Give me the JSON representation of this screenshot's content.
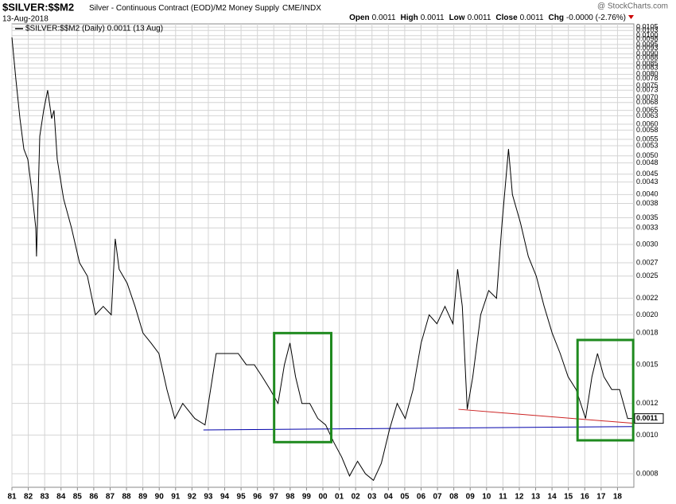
{
  "chart_data": {
    "type": "line",
    "title": "$SILVER:$$M2",
    "subtitle": "Silver - Continuous Contract (EOD)/M2 Money Supply",
    "exchange": "CME/INDX",
    "date": "13-Aug-2018",
    "quote": [
      {
        "label": "Open",
        "value": "0.0011"
      },
      {
        "label": "High",
        "value": "0.0011"
      },
      {
        "label": "Low",
        "value": "0.0011"
      },
      {
        "label": "Close",
        "value": "0.0011"
      },
      {
        "label": "Chg",
        "value": "-0.0000 (-2.76%)"
      }
    ],
    "credit": "@ StockCharts.com",
    "log_scale": true,
    "grid": true,
    "xlim": [
      1981,
      2019
    ],
    "ylim": [
      0.00074,
      0.0107
    ],
    "xticks": [
      {
        "value": 1981,
        "label": "81"
      },
      {
        "value": 1982,
        "label": "82"
      },
      {
        "value": 1983,
        "label": "83"
      },
      {
        "value": 1984,
        "label": "84"
      },
      {
        "value": 1985,
        "label": "85"
      },
      {
        "value": 1986,
        "label": "86"
      },
      {
        "value": 1987,
        "label": "87"
      },
      {
        "value": 1988,
        "label": "88"
      },
      {
        "value": 1989,
        "label": "89"
      },
      {
        "value": 1990,
        "label": "90"
      },
      {
        "value": 1991,
        "label": "91"
      },
      {
        "value": 1992,
        "label": "92"
      },
      {
        "value": 1993,
        "label": "93"
      },
      {
        "value": 1994,
        "label": "94"
      },
      {
        "value": 1995,
        "label": "95"
      },
      {
        "value": 1996,
        "label": "96"
      },
      {
        "value": 1997,
        "label": "97"
      },
      {
        "value": 1998,
        "label": "98"
      },
      {
        "value": 1999,
        "label": "99"
      },
      {
        "value": 2000,
        "label": "00"
      },
      {
        "value": 2001,
        "label": "01"
      },
      {
        "value": 2002,
        "label": "02"
      },
      {
        "value": 2003,
        "label": "03"
      },
      {
        "value": 2004,
        "label": "04"
      },
      {
        "value": 2005,
        "label": "05"
      },
      {
        "value": 2006,
        "label": "06"
      },
      {
        "value": 2007,
        "label": "07"
      },
      {
        "value": 2008,
        "label": "08"
      },
      {
        "value": 2009,
        "label": "09"
      },
      {
        "value": 2010,
        "label": "10"
      },
      {
        "value": 2011,
        "label": "11"
      },
      {
        "value": 2012,
        "label": "12"
      },
      {
        "value": 2013,
        "label": "13"
      },
      {
        "value": 2014,
        "label": "14"
      },
      {
        "value": 2015,
        "label": "15"
      },
      {
        "value": 2016,
        "label": "16"
      },
      {
        "value": 2017,
        "label": "17"
      },
      {
        "value": 2018,
        "label": "18"
      }
    ],
    "yticks": [
      0.0105,
      0.0103,
      {
        "value": 0.01,
        "label": "0.0100"
      },
      0.0098,
      0.0095,
      0.0093,
      {
        "value": 0.009,
        "label": "0.0090"
      },
      0.0088,
      0.0085,
      0.0083,
      {
        "value": 0.008,
        "label": "0.0080"
      },
      0.0078,
      0.0075,
      0.0073,
      {
        "value": 0.007,
        "label": "0.0070"
      },
      0.0068,
      0.0065,
      0.0063,
      {
        "value": 0.006,
        "label": "0.0060"
      },
      0.0058,
      0.0055,
      0.0053,
      {
        "value": 0.005,
        "label": "0.0050"
      },
      0.0048,
      0.0045,
      0.0043,
      {
        "value": 0.004,
        "label": "0.0040"
      },
      0.0038,
      0.0035,
      0.0033,
      {
        "value": 0.003,
        "label": "0.0030"
      },
      0.0027,
      0.0025,
      0.0022,
      {
        "value": 0.002,
        "label": "0.0020"
      },
      0.0018,
      0.0015,
      0.0012,
      {
        "value": 0.001,
        "label": "0.0010"
      },
      0.0008
    ],
    "series": [
      {
        "name": "$SILVER:$$M2 (Daily) 0.0011 (13 Aug)",
        "color": "#000000",
        "x": [
          1981.0,
          1981.24,
          1981.49,
          1981.73,
          1981.97,
          1982.21,
          1982.46,
          1982.5,
          1982.7,
          1982.94,
          1983.18,
          1983.43,
          1983.57,
          1983.77,
          1984.16,
          1984.64,
          1985.13,
          1985.61,
          1986.1,
          1986.58,
          1987.07,
          1987.31,
          1987.55,
          1988.04,
          1988.52,
          1989.01,
          1989.5,
          1989.98,
          1990.47,
          1990.95,
          1991.44,
          1992.17,
          1992.8,
          1993.14,
          1993.48,
          1993.86,
          1994.35,
          1994.83,
          1995.32,
          1995.81,
          1996.29,
          1996.78,
          1997.26,
          1997.65,
          1997.99,
          1998.33,
          1998.72,
          1999.2,
          1999.69,
          2000.17,
          2000.66,
          2001.15,
          2001.63,
          2002.12,
          2002.6,
          2003.09,
          2003.57,
          2004.06,
          2004.54,
          2005.03,
          2005.51,
          2006.0,
          2006.49,
          2006.97,
          2007.46,
          2007.94,
          2008.23,
          2008.52,
          2008.82,
          2009.16,
          2009.64,
          2010.13,
          2010.61,
          2010.95,
          2011.34,
          2011.58,
          2012.07,
          2012.55,
          2013.04,
          2013.52,
          2014.01,
          2014.5,
          2014.98,
          2015.47,
          2016.05,
          2016.44,
          2016.78,
          2017.17,
          2017.65,
          2018.13,
          2018.62,
          2018.95
        ],
        "values": [
          0.0099,
          0.0078,
          0.0062,
          0.0052,
          0.0049,
          0.0041,
          0.0033,
          0.0028,
          0.0056,
          0.0065,
          0.0073,
          0.0062,
          0.0065,
          0.0049,
          0.0039,
          0.0033,
          0.0027,
          0.0025,
          0.002,
          0.0021,
          0.002,
          0.0031,
          0.0026,
          0.0024,
          0.0021,
          0.0018,
          0.0017,
          0.0016,
          0.0013,
          0.0011,
          0.0012,
          0.0011,
          0.00106,
          0.0013,
          0.0016,
          0.0016,
          0.0016,
          0.0016,
          0.0015,
          0.0015,
          0.0014,
          0.0013,
          0.0012,
          0.0015,
          0.0017,
          0.0014,
          0.0012,
          0.0012,
          0.0011,
          0.00106,
          0.00096,
          0.00088,
          0.00079,
          0.00086,
          0.0008,
          0.00077,
          0.00085,
          0.00103,
          0.0012,
          0.0011,
          0.0013,
          0.0017,
          0.002,
          0.0019,
          0.0021,
          0.0019,
          0.0026,
          0.0021,
          0.00116,
          0.0014,
          0.002,
          0.0023,
          0.0022,
          0.0034,
          0.0052,
          0.004,
          0.0034,
          0.0028,
          0.0025,
          0.0021,
          0.0018,
          0.0016,
          0.0014,
          0.0013,
          0.0011,
          0.0014,
          0.0016,
          0.0014,
          0.0013,
          0.0013,
          0.0011,
          0.0011
        ]
      }
    ],
    "trendlines": [
      {
        "color": "#0000aa",
        "x": [
          1992.7,
          2019
        ],
        "y": [
          0.00103,
          0.00105
        ]
      },
      {
        "color": "#cc2222",
        "x": [
          2008.28,
          2019
        ],
        "y": [
          0.00116,
          0.00107
        ]
      }
    ],
    "boxes": [
      {
        "color": "#1f8a1f",
        "x": [
          1997.02,
          2000.51
        ],
        "y": [
          0.00096,
          0.0018
        ]
      },
      {
        "color": "#1f8a1f",
        "x": [
          2015.56,
          2018.96
        ],
        "y": [
          0.00097,
          0.00173
        ]
      }
    ]
  }
}
